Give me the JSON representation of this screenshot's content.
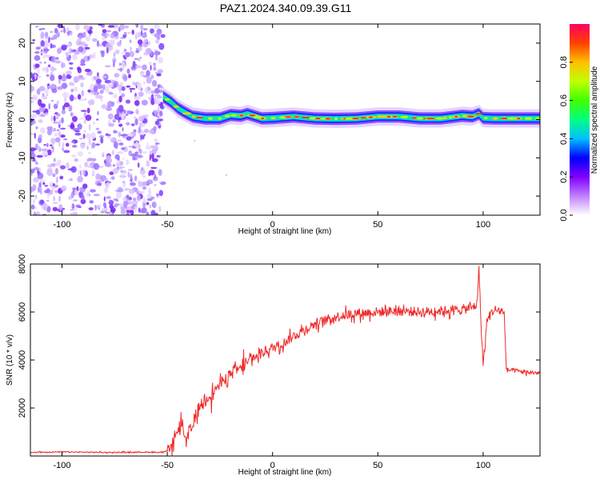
{
  "figure_title": "PAZ1.2024.340.09.39.G11",
  "chart_data": [
    {
      "type": "heatmap",
      "title": "PAZ1.2024.340.09.39.G11",
      "xlabel": "Height of straight line (km)",
      "ylabel": "Frequency (Hz)",
      "xlim": [
        -115,
        127
      ],
      "ylim": [
        -25,
        25
      ],
      "xticks": [
        -100,
        -50,
        0,
        50,
        100
      ],
      "yticks": [
        -20,
        -10,
        0,
        10,
        20
      ],
      "noise_region_x": [
        -115,
        -52
      ],
      "ridge": {
        "x": [
          -52,
          -48,
          -45,
          -42,
          -38,
          -32,
          -25,
          -20,
          -15,
          -12,
          -8,
          -5,
          0,
          10,
          20,
          30,
          40,
          50,
          60,
          70,
          80,
          90,
          95,
          98,
          100,
          105,
          110,
          120,
          127
        ],
        "frequency_hz": [
          6,
          4.5,
          3,
          2,
          0.8,
          0.3,
          0.3,
          1.2,
          1.0,
          1.5,
          0.8,
          0.3,
          0.4,
          0.8,
          0.3,
          0.2,
          0.3,
          0.8,
          0.8,
          0.3,
          0.3,
          1.0,
          0.8,
          1.5,
          0.4,
          0.3,
          0.3,
          0.3,
          0.3
        ]
      },
      "colorbar": {
        "label": "Normalized spectral amplitude",
        "range": [
          0.0,
          1.0
        ],
        "ticks": [
          "0.0",
          "0.2",
          "0.4",
          "0.6",
          "0.8"
        ],
        "colors": [
          "#ffffff",
          "#c080ff",
          "#8000ff",
          "#0000ff",
          "#00c0ff",
          "#00ff80",
          "#40ff00",
          "#c0ff00",
          "#ffc000",
          "#ff4000",
          "#ff0060"
        ]
      },
      "grid": false
    },
    {
      "type": "line",
      "xlabel": "Height of straight line (km)",
      "ylabel": "SNR (10 * v/v)",
      "xlim": [
        -115,
        127
      ],
      "ylim": [
        0,
        8000
      ],
      "xticks": [
        -100,
        -50,
        0,
        50,
        100
      ],
      "yticks": [
        2000,
        4000,
        6000,
        8000
      ],
      "grid": false,
      "series_color": "#ee2a2a",
      "series": [
        {
          "x": [
            -115,
            -100,
            -80,
            -60,
            -52,
            -48,
            -45,
            -43,
            -41,
            -38,
            -35,
            -30,
            -25,
            -20,
            -15,
            -10,
            -5,
            0,
            5,
            10,
            20,
            30,
            40,
            50,
            60,
            70,
            80,
            90,
            95,
            97,
            98,
            99,
            100,
            102,
            105,
            108,
            110,
            111,
            115,
            120,
            127
          ],
          "y": [
            150,
            170,
            150,
            160,
            150,
            300,
            1100,
            1300,
            600,
            1200,
            2000,
            2500,
            3000,
            3400,
            3700,
            4000,
            4300,
            4500,
            4700,
            5000,
            5500,
            5800,
            5950,
            6000,
            6050,
            6000,
            6050,
            6100,
            6200,
            6300,
            7800,
            5500,
            3800,
            5700,
            6100,
            6050,
            6000,
            3600,
            3550,
            3500,
            3450
          ]
        }
      ]
    }
  ]
}
